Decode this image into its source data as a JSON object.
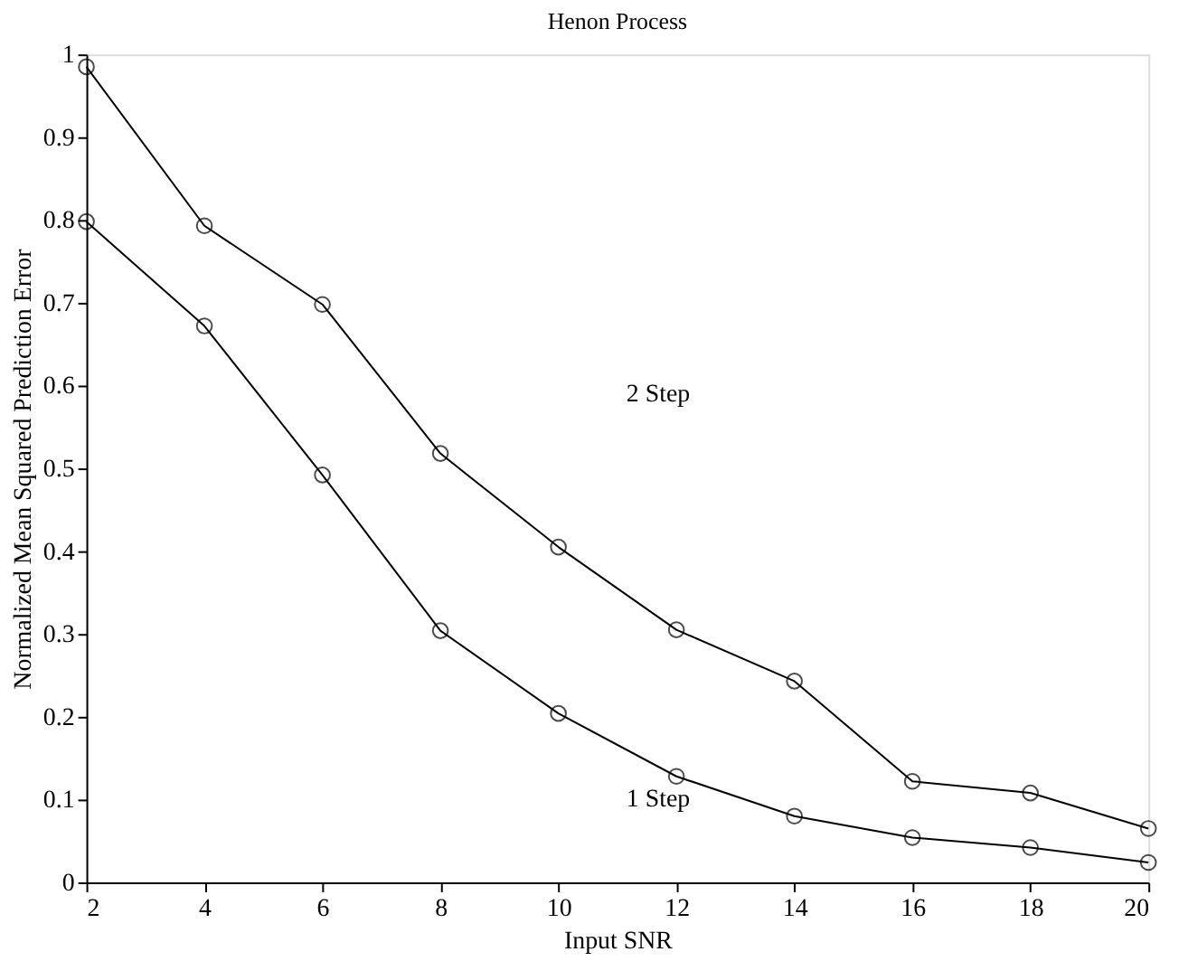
{
  "chart_data": {
    "type": "line",
    "title": "Henon Process",
    "xlabel": "Input SNR",
    "ylabel": "Normalized Mean Squared Prediction Error",
    "x": [
      2,
      4,
      6,
      8,
      10,
      12,
      14,
      16,
      18,
      20
    ],
    "series": [
      {
        "color": "#000000",
        "values": [
          0.985,
          0.793,
          0.698,
          0.518,
          0.405,
          0.305,
          0.243,
          0.122,
          0.108,
          0.065
        ]
      },
      {
        "color": "#000000",
        "values": [
          0.798,
          0.672,
          0.492,
          0.304,
          0.204,
          0.128,
          0.08,
          0.054,
          0.042,
          0.024
        ]
      }
    ],
    "annotations": [
      "2 Step",
      "1 Step"
    ],
    "xlim": [
      2,
      20
    ],
    "xticks": [
      2,
      4,
      6,
      8,
      10,
      12,
      14,
      16,
      18,
      20
    ],
    "ylim": [
      0,
      1
    ],
    "yticks": [
      0,
      0.1,
      0.2,
      0.3,
      0.4,
      0.5,
      0.6,
      0.7,
      0.8,
      0.9,
      1
    ],
    "grid": false,
    "legend": false,
    "marker": "circle",
    "line_style": "solid"
  }
}
